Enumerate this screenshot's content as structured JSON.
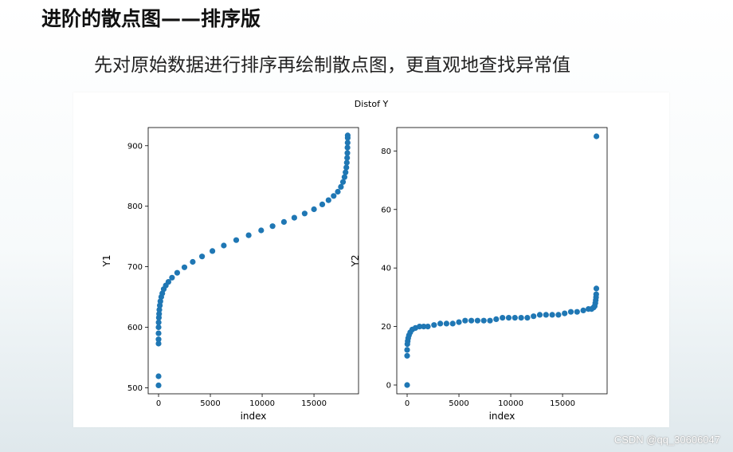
{
  "slide": {
    "title": "进阶的散点图——排序版",
    "subtitle": "先对原始数据进行排序再绘制散点图，更直观地查找异常值"
  },
  "watermark": "CSDN @qq_30606047",
  "colors": {
    "marker": "#1f77b4",
    "axis": "#000000"
  },
  "chart_data": {
    "suptitle": "Distof Y",
    "charts": [
      {
        "type": "scatter",
        "xlabel": "index",
        "ylabel": "Y1",
        "xlim": [
          -1000,
          19300
        ],
        "ylim": [
          490,
          930
        ],
        "xticks": [
          0,
          5000,
          10000,
          15000
        ],
        "yticks": [
          500,
          600,
          700,
          800,
          900
        ],
        "x": [
          0,
          0,
          0,
          0,
          0,
          0,
          10,
          30,
          50,
          80,
          120,
          180,
          260,
          360,
          500,
          700,
          950,
          1300,
          1800,
          2500,
          3300,
          4200,
          5200,
          6300,
          7500,
          8700,
          9900,
          11000,
          12100,
          13100,
          14100,
          15000,
          15800,
          16400,
          16900,
          17300,
          17600,
          17800,
          17950,
          18050,
          18120,
          18170,
          18200,
          18220,
          18235,
          18245,
          18252,
          18256
        ],
        "y": [
          504,
          519,
          573,
          580,
          590,
          600,
          608,
          616,
          622,
          629,
          636,
          643,
          650,
          656,
          663,
          669,
          675,
          682,
          690,
          699,
          708,
          717,
          726,
          735,
          744,
          752,
          760,
          767,
          774,
          781,
          788,
          795,
          803,
          810,
          817,
          824,
          832,
          840,
          848,
          856,
          864,
          872,
          880,
          888,
          897,
          905,
          913,
          917
        ]
      },
      {
        "type": "scatter",
        "xlabel": "index",
        "ylabel": "Y2",
        "xlim": [
          -1000,
          19300
        ],
        "ylim": [
          -3,
          88
        ],
        "xticks": [
          0,
          5000,
          10000,
          15000
        ],
        "yticks": [
          0,
          20,
          40,
          60,
          80
        ],
        "x": [
          0,
          0,
          0,
          20,
          50,
          100,
          180,
          300,
          500,
          800,
          1200,
          1600,
          2000,
          2600,
          3200,
          3800,
          4400,
          5000,
          5600,
          6200,
          6800,
          7400,
          8000,
          8600,
          9200,
          9800,
          10400,
          11000,
          11600,
          12200,
          12800,
          13400,
          14000,
          14600,
          15200,
          15800,
          16400,
          17000,
          17500,
          17800,
          18000,
          18100,
          18160,
          18200,
          18230,
          18250,
          18260,
          18270
        ],
        "y": [
          0,
          10,
          12,
          14,
          15,
          16,
          17,
          18,
          19,
          19.5,
          20,
          20,
          20,
          20.5,
          21,
          21,
          21,
          21.5,
          22,
          22,
          22,
          22,
          22,
          22.5,
          23,
          23,
          23,
          23,
          23,
          23.5,
          24,
          24,
          24,
          24,
          24.5,
          25,
          25,
          25.5,
          26,
          26,
          26.5,
          27,
          28,
          29,
          30,
          31,
          33,
          85
        ]
      }
    ]
  }
}
